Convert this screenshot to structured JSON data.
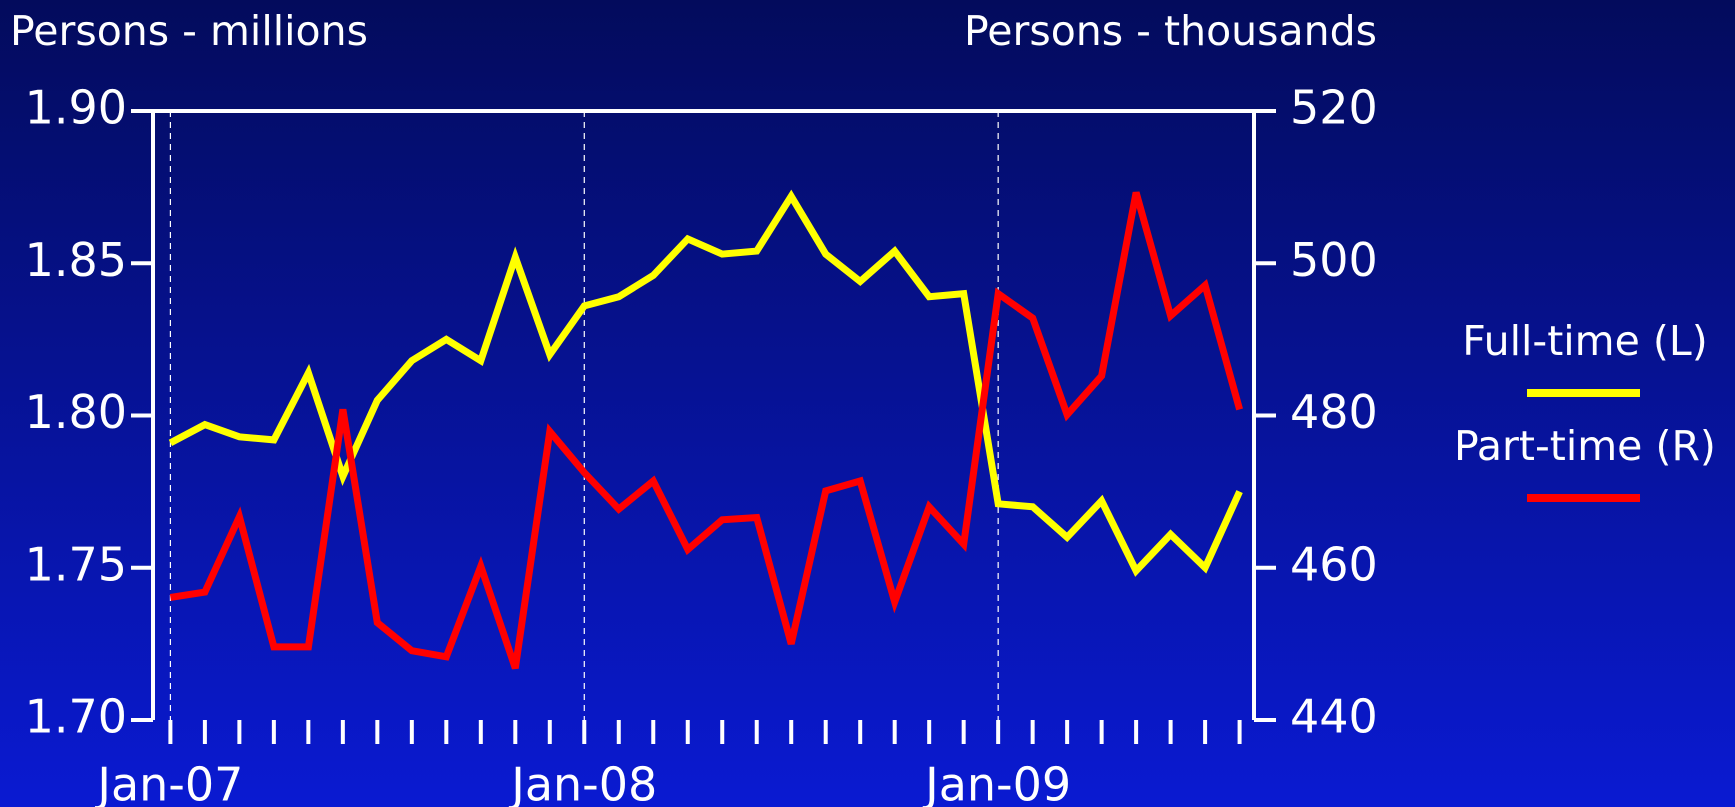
{
  "chart_data": {
    "type": "line",
    "y_label": "Persons - millions",
    "y2_label": "Persons - thousands",
    "categories": [
      "Jan-07",
      null,
      null,
      null,
      null,
      null,
      null,
      null,
      null,
      null,
      null,
      null,
      "Jan-08",
      null,
      null,
      null,
      null,
      null,
      null,
      null,
      null,
      null,
      null,
      null,
      "Jan-09",
      null,
      null,
      null,
      null,
      null,
      null,
      null
    ],
    "series": [
      {
        "name": "Full-time (L)",
        "color": "#ffff00",
        "axis": "y",
        "values": [
          1.791,
          1.797,
          1.793,
          1.792,
          1.814,
          1.78,
          1.805,
          1.818,
          1.825,
          1.818,
          1.852,
          1.82,
          1.836,
          1.839,
          1.846,
          1.858,
          1.853,
          1.854,
          1.872,
          1.853,
          1.844,
          1.854,
          1.839,
          1.84,
          1.771,
          1.77,
          1.76,
          1.772,
          1.749,
          1.761,
          1.75,
          1.775
        ]
      },
      {
        "name": "Part-time (R)",
        "color": "#ff0000",
        "axis": "y2",
        "values": [
          456.1,
          456.8,
          466.7,
          449.6,
          449.6,
          480.8,
          452.8,
          449.1,
          448.3,
          460.2,
          446.8,
          477.9,
          472.5,
          467.7,
          471.4,
          462.4,
          466.3,
          466.6,
          450.0,
          470.1,
          471.4,
          455.5,
          468.0,
          463.1,
          496.0,
          492.8,
          480.1,
          485.2,
          509.3,
          493.1,
          497.1,
          480.8
        ]
      }
    ],
    "ylim": [
      1.7,
      1.9
    ],
    "yticks": [
      {
        "value": 1.7,
        "label": "1.70"
      },
      1.75,
      {
        "value": 1.8,
        "label": "1.80"
      },
      1.85,
      {
        "value": 1.9,
        "label": "1.90"
      }
    ],
    "y2lim": [
      440,
      520
    ],
    "y2ticks": [
      440,
      460,
      480,
      500,
      520
    ],
    "x_grid": "dashed",
    "legend": "right"
  }
}
